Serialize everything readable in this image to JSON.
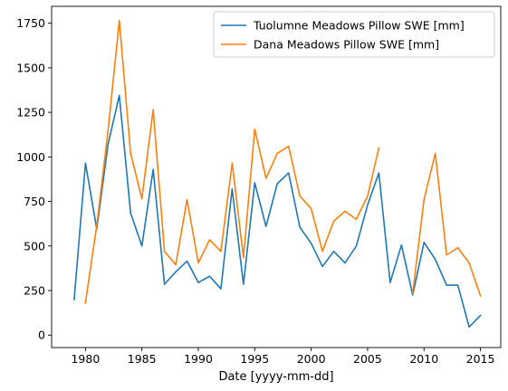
{
  "chart_data": {
    "type": "line",
    "title": "",
    "xlabel": "Date [yyyy-mm-dd]",
    "ylabel": "",
    "xlim": [
      1977,
      2016.8
    ],
    "ylim": [
      -70,
      1845
    ],
    "xticks": [
      1980,
      1985,
      1990,
      1995,
      2000,
      2005,
      2010,
      2015
    ],
    "xtick_labels": [
      "1980",
      "1985",
      "1990",
      "1995",
      "2000",
      "2005",
      "2010",
      "2015"
    ],
    "yticks": [
      0,
      250,
      500,
      750,
      1000,
      1250,
      1500,
      1750
    ],
    "ytick_labels": [
      "0",
      "250",
      "500",
      "750",
      "1000",
      "1250",
      "1500",
      "1750"
    ],
    "grid": false,
    "legend_position": "top-right",
    "series": [
      {
        "name": "Tuolumne Meadows Pillow SWE [mm]",
        "color": "#1f77b4",
        "points": [
          [
            1979,
            200
          ],
          [
            1980,
            965
          ],
          [
            1981,
            595
          ],
          [
            1982,
            1070
          ],
          [
            1983,
            1345
          ],
          [
            1984,
            685
          ],
          [
            1985,
            500
          ],
          [
            1986,
            930
          ],
          [
            1987,
            285
          ],
          [
            1988,
            355
          ],
          [
            1989,
            415
          ],
          [
            1990,
            295
          ],
          [
            1991,
            330
          ],
          [
            1992,
            260
          ],
          [
            1993,
            820
          ],
          [
            1994,
            285
          ],
          [
            1995,
            855
          ],
          [
            1996,
            610
          ],
          [
            1997,
            850
          ],
          [
            1998,
            910
          ],
          [
            1999,
            605
          ],
          [
            2000,
            515
          ],
          [
            2001,
            385
          ],
          [
            2002,
            470
          ],
          [
            2003,
            405
          ],
          [
            2004,
            500
          ],
          [
            2005,
            730
          ],
          [
            2006,
            910
          ],
          [
            2007,
            295
          ],
          [
            2008,
            505
          ],
          [
            2009,
            225
          ],
          [
            2010,
            520
          ],
          [
            2011,
            425
          ],
          [
            2012,
            280
          ],
          [
            2013,
            280
          ],
          [
            2014,
            45
          ],
          [
            2015,
            110
          ]
        ]
      },
      {
        "name": "Dana Meadows Pillow SWE [mm]",
        "color": "#ff7f0e",
        "segments": [
          [
            [
              1980,
              180
            ],
            [
              1981,
              615
            ],
            [
              1982,
              1145
            ],
            [
              1983,
              1765
            ],
            [
              1984,
              1020
            ],
            [
              1985,
              765
            ],
            [
              1986,
              1265
            ],
            [
              1987,
              470
            ],
            [
              1988,
              395
            ],
            [
              1989,
              760
            ],
            [
              1990,
              405
            ],
            [
              1991,
              535
            ],
            [
              1992,
              470
            ],
            [
              1993,
              965
            ],
            [
              1994,
              435
            ],
            [
              1995,
              1155
            ],
            [
              1996,
              880
            ],
            [
              1997,
              1020
            ],
            [
              1998,
              1060
            ],
            [
              1999,
              780
            ],
            [
              2000,
              710
            ],
            [
              2001,
              470
            ],
            [
              2002,
              640
            ],
            [
              2003,
              695
            ],
            [
              2004,
              650
            ],
            [
              2005,
              780
            ],
            [
              2006,
              1050
            ]
          ],
          [
            [
              2009,
              235
            ],
            [
              2010,
              760
            ],
            [
              2011,
              1020
            ],
            [
              2012,
              450
            ],
            [
              2013,
              490
            ],
            [
              2014,
              405
            ],
            [
              2015,
              220
            ]
          ]
        ]
      }
    ]
  }
}
